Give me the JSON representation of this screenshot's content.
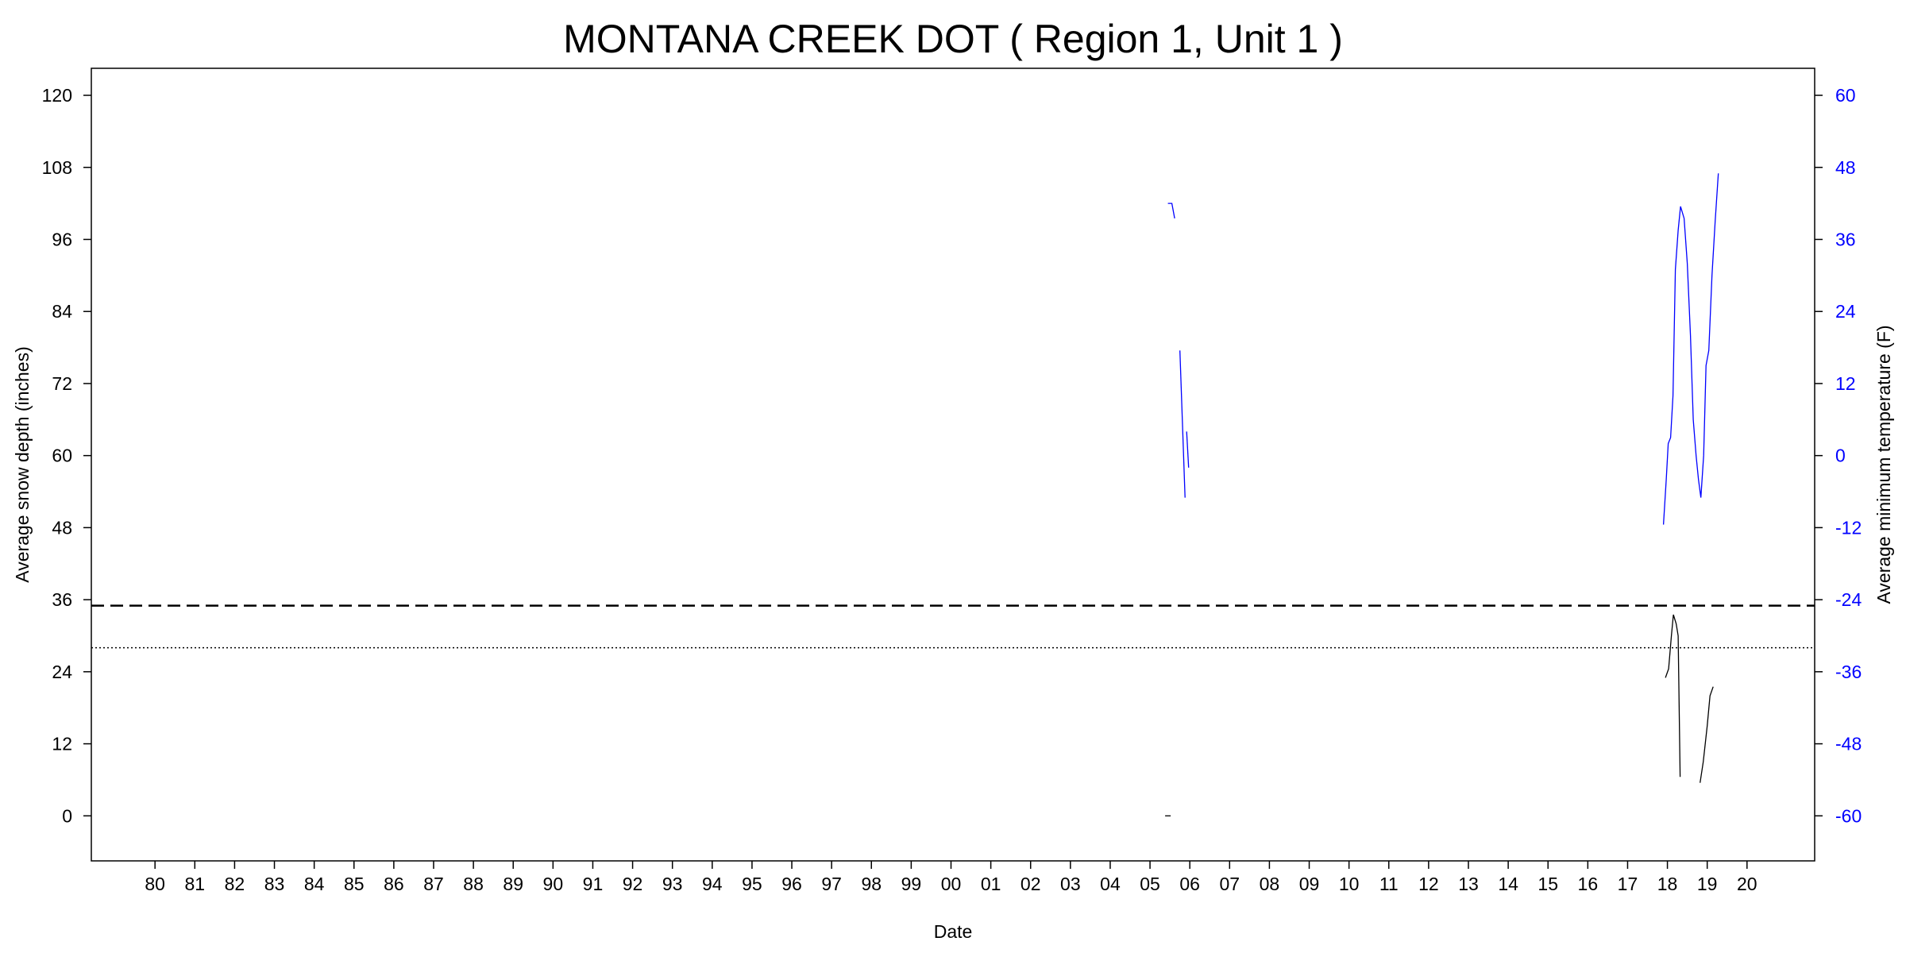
{
  "chart_data": {
    "type": "line",
    "title": "MONTANA CREEK DOT ( Region 1, Unit 1 )",
    "xlabel": "Date",
    "ylabel": "Average snow depth (inches)",
    "y2label": "Average minimum temperature (F)",
    "xlim": [
      1978.4,
      2021.7
    ],
    "ylim": [
      -7.5,
      124.5
    ],
    "y2lim": [
      -67.5,
      64.5
    ],
    "x_ticks": [
      1980,
      1981,
      1982,
      1983,
      1984,
      1985,
      1986,
      1987,
      1988,
      1989,
      1990,
      1991,
      1992,
      1993,
      1994,
      1995,
      1996,
      1997,
      1998,
      1999,
      2000,
      2001,
      2002,
      2003,
      2004,
      2005,
      2006,
      2007,
      2008,
      2009,
      2010,
      2011,
      2012,
      2013,
      2014,
      2015,
      2016,
      2017,
      2018,
      2019,
      2020
    ],
    "x_tick_labels": [
      "80",
      "81",
      "82",
      "83",
      "84",
      "85",
      "86",
      "87",
      "88",
      "89",
      "90",
      "91",
      "92",
      "93",
      "94",
      "95",
      "96",
      "97",
      "98",
      "99",
      "00",
      "01",
      "02",
      "03",
      "04",
      "05",
      "06",
      "07",
      "08",
      "09",
      "10",
      "11",
      "12",
      "13",
      "14",
      "15",
      "16",
      "17",
      "18",
      "19",
      "20"
    ],
    "y_ticks": [
      0,
      12,
      24,
      36,
      48,
      60,
      72,
      84,
      96,
      108,
      120
    ],
    "y2_ticks": [
      -60,
      -48,
      -36,
      -24,
      -12,
      0,
      12,
      24,
      36,
      48,
      60
    ],
    "colors": {
      "snow": "#000000",
      "temperature": "#0000ff",
      "right_axis": "#0000ff"
    },
    "reference_lines": [
      {
        "style": "dashed",
        "y": 35
      },
      {
        "style": "dotted",
        "y": 28
      }
    ],
    "series": [
      {
        "axis": "left",
        "color": "#000000",
        "segments": [
          [
            [
              2005.38,
              0
            ],
            [
              2005.52,
              0
            ]
          ],
          [
            [
              2017.95,
              23
            ],
            [
              2018.03,
              24.5
            ],
            [
              2018.1,
              30
            ],
            [
              2018.15,
              33.5
            ],
            [
              2018.22,
              32
            ],
            [
              2018.27,
              30
            ],
            [
              2018.32,
              6.5
            ]
          ],
          [
            [
              2018.82,
              5.5
            ],
            [
              2018.9,
              9
            ],
            [
              2019.0,
              15
            ],
            [
              2019.07,
              20
            ],
            [
              2019.15,
              21.5
            ]
          ]
        ]
      },
      {
        "axis": "right",
        "color": "#0000ff",
        "segments": [
          [
            [
              2005.45,
              42
            ],
            [
              2005.55,
              42
            ],
            [
              2005.62,
              39.5
            ]
          ],
          [
            [
              2005.75,
              17.5
            ],
            [
              2005.88,
              -7
            ]
          ],
          [
            [
              2005.92,
              4
            ],
            [
              2005.97,
              -2
            ]
          ],
          [
            [
              2017.9,
              -11.5
            ],
            [
              2017.97,
              -4
            ],
            [
              2018.02,
              2
            ],
            [
              2018.08,
              3
            ],
            [
              2018.14,
              10
            ],
            [
              2018.2,
              31
            ],
            [
              2018.27,
              37.5
            ],
            [
              2018.33,
              41.5
            ],
            [
              2018.42,
              39.5
            ],
            [
              2018.5,
              32
            ],
            [
              2018.58,
              20
            ],
            [
              2018.65,
              6
            ],
            [
              2018.72,
              0
            ],
            [
              2018.78,
              -4
            ],
            [
              2018.84,
              -7
            ],
            [
              2018.91,
              0
            ],
            [
              2018.97,
              15
            ],
            [
              2019.04,
              17.5
            ],
            [
              2019.12,
              30
            ],
            [
              2019.2,
              39
            ],
            [
              2019.28,
              47
            ]
          ]
        ]
      }
    ]
  }
}
